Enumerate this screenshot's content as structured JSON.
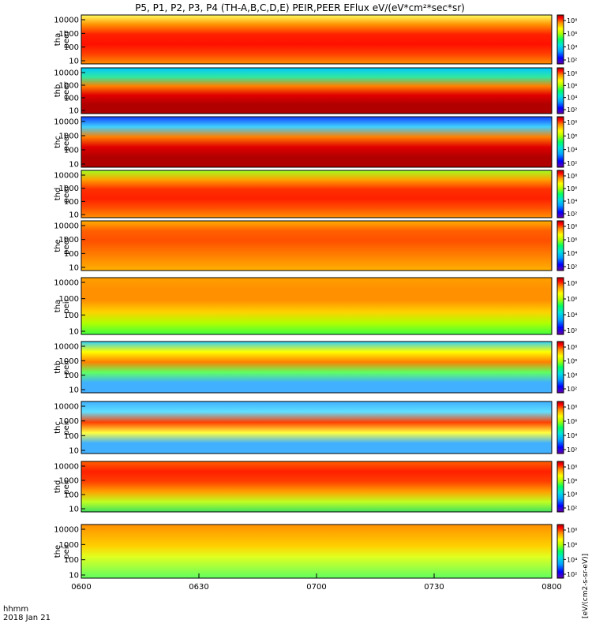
{
  "chart_data": {
    "type": "heatmap",
    "title": "P5, P1, P2, P3, P4 (TH-A,B,C,D,E) PEIR,PEER EFlux eV/(eV*cm²*sec*sr)",
    "x_axis": {
      "label_line1": "hhmm",
      "label_line2": "2018 Jan 21",
      "ticks": [
        "0600",
        "0630",
        "0700",
        "0730",
        "0800"
      ],
      "range": [
        "06:00",
        "08:00"
      ]
    },
    "y_scale": "log",
    "y_ticks": [
      "10",
      "100",
      "1000",
      "10000"
    ],
    "colorbar": {
      "scale": "log",
      "tick_labels": [
        "10²",
        "10⁴",
        "10⁶",
        "10⁸"
      ],
      "label": "[eV/(cm2-s-sr-eV)]",
      "colors": [
        "#6a00a8",
        "#0000ff",
        "#00a0ff",
        "#00e0e0",
        "#00ff60",
        "#b0ff00",
        "#ffff00",
        "#ff9000",
        "#ff0000",
        "#b00000"
      ]
    },
    "panels": [
      {
        "id": "tha_peer",
        "label_probe": "tha",
        "label_inst": "peer"
      },
      {
        "id": "thb_peer",
        "label_probe": "thb",
        "label_inst": "peer"
      },
      {
        "id": "thc_peer",
        "label_probe": "thc",
        "label_inst": "peer"
      },
      {
        "id": "thd_peer",
        "label_probe": "thd",
        "label_inst": "peer"
      },
      {
        "id": "the_peer",
        "label_probe": "the",
        "label_inst": "peer"
      },
      {
        "id": "tha_peir",
        "label_probe": "tha",
        "label_inst": "peir"
      },
      {
        "id": "thb_peir",
        "label_probe": "thb",
        "label_inst": "peir"
      },
      {
        "id": "thc_peir",
        "label_probe": "thc",
        "label_inst": "peir"
      },
      {
        "id": "thd_peir",
        "label_probe": "thd",
        "label_inst": "peir"
      },
      {
        "id": "the_peir",
        "label_probe": "the",
        "label_inst": "peir"
      }
    ]
  }
}
